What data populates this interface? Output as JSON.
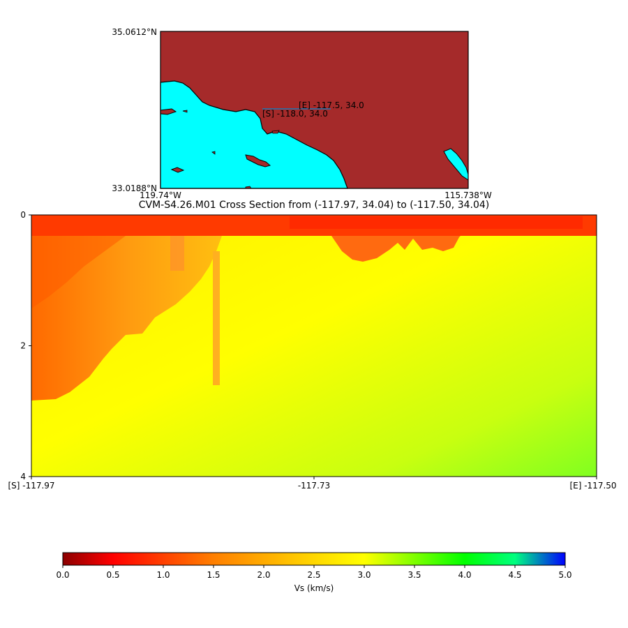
{
  "inset_map": {
    "lat_max_label": "35.0612°N",
    "lat_min_label": "33.0188°N",
    "lon_min_label": "119.74°W",
    "lon_max_label": "115.738°W",
    "start_label": "[S] -118.0, 34.0",
    "end_label": "[E] -117.5, 34.0",
    "land_color": "#a52a2a",
    "water_color": "#00ffff"
  },
  "chart_data": {
    "type": "heatmap",
    "title": "CVM-S4.26.M01 Cross Section from (-117.97, 34.04) to (-117.50, 34.04)",
    "x_tick_labels": [
      "[S] -117.97",
      "-117.73",
      "[E] -117.50"
    ],
    "y_ticks": [
      0,
      2,
      4
    ],
    "ylim": [
      4,
      0
    ],
    "colorbar": {
      "label": "Vs (km/s)",
      "range": [
        0.0,
        5.0
      ],
      "ticks": [
        "0.0",
        "0.5",
        "1.0",
        "1.5",
        "2.0",
        "2.5",
        "3.0",
        "3.5",
        "4.0",
        "4.5",
        "5.0"
      ],
      "colormap_stops": [
        {
          "v": 0.0,
          "color": "#8b0000"
        },
        {
          "v": 0.5,
          "color": "#ff0000"
        },
        {
          "v": 1.5,
          "color": "#ff7f00"
        },
        {
          "v": 2.5,
          "color": "#ffd700"
        },
        {
          "v": 3.0,
          "color": "#ffff00"
        },
        {
          "v": 3.5,
          "color": "#7fff00"
        },
        {
          "v": 4.0,
          "color": "#00ff00"
        },
        {
          "v": 4.5,
          "color": "#00ff7f"
        },
        {
          "v": 5.0,
          "color": "#0000ff"
        }
      ]
    }
  }
}
